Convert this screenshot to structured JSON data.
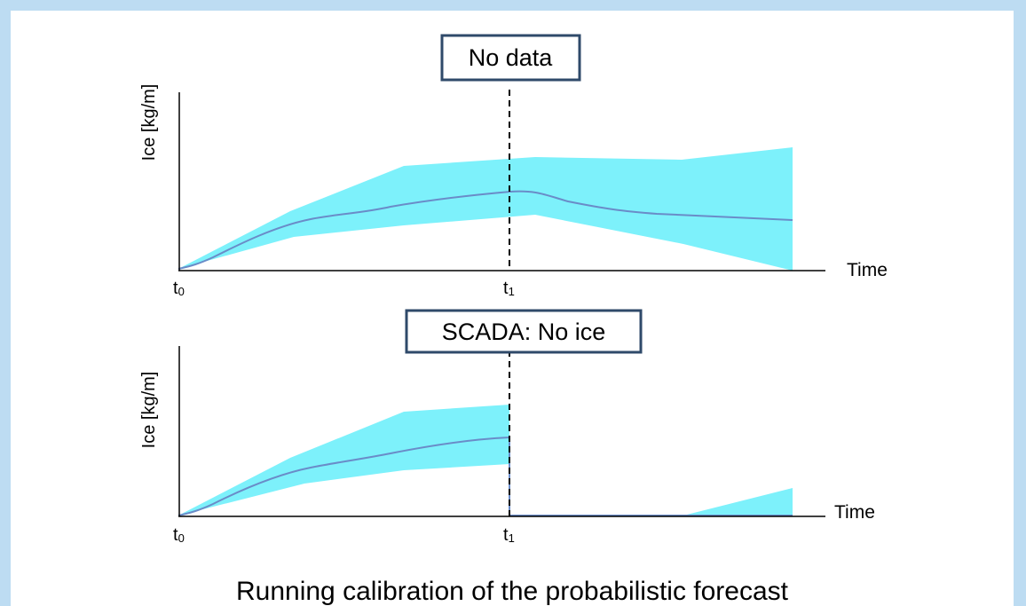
{
  "panels": [
    {
      "status_box": "No data",
      "y_axis_label": "Ice [kg/m]",
      "x_axis_label": "Time",
      "t0_label": {
        "main": "t",
        "sub": "0"
      },
      "t1_label": {
        "main": "t",
        "sub": "1"
      }
    },
    {
      "status_box": "SCADA: No ice",
      "y_axis_label": "Ice [kg/m]",
      "x_axis_label": "Time",
      "t0_label": {
        "main": "t",
        "sub": "0"
      },
      "t1_label": {
        "main": "t",
        "sub": "1"
      }
    }
  ],
  "caption": "Running calibration of the probabilistic forecast",
  "colors": {
    "background": "#bddcf2",
    "band": "#7df1fb",
    "median_line": "#6a8cc8",
    "box_border": "#2f4a6a",
    "axis": "#000000"
  }
}
